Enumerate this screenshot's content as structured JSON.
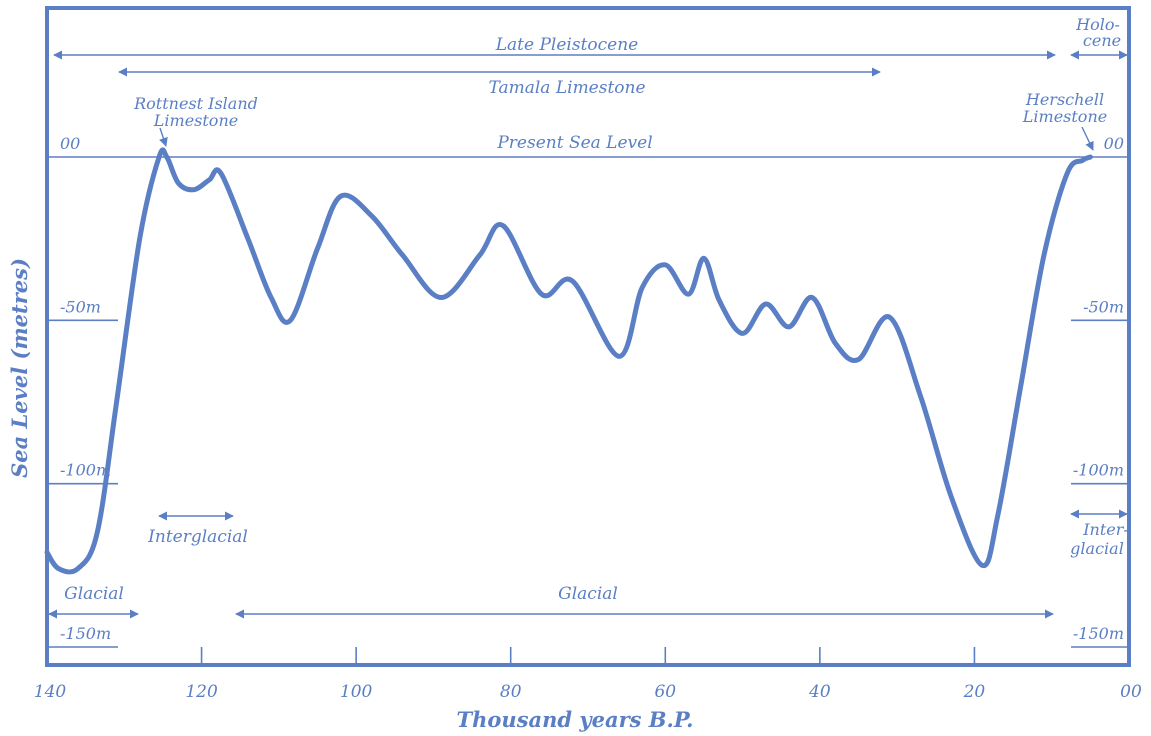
{
  "colors": {
    "accent": "#5b7fc4",
    "background": "#ffffff"
  },
  "chart_data": {
    "type": "line",
    "title": "",
    "xlabel": "Thousand years B.P.",
    "ylabel": "Sea Level (metres)",
    "xlim": [
      140,
      0
    ],
    "ylim": [
      -165,
      45
    ],
    "x_reversed": true,
    "x_ticks": [
      140,
      120,
      100,
      80,
      60,
      40,
      20,
      0
    ],
    "x_tick_labels": [
      "140",
      "120",
      "100",
      "80",
      "60",
      "40",
      "20",
      "00"
    ],
    "y_ticks": [
      0,
      -50,
      -100,
      -150
    ],
    "y_tick_labels_left": [
      "00",
      "-50m",
      "-100m",
      "-150m"
    ],
    "y_tick_labels_right": [
      "00",
      "-50m",
      "-100m",
      "-150m"
    ],
    "grid": false,
    "reference_line": {
      "y": 0,
      "label": "Present Sea Level"
    },
    "series": [
      {
        "x": [
          140,
          138.5,
          136,
          133.5,
          131,
          128,
          125.5,
          124.5,
          123,
          121,
          119,
          117.5,
          114,
          111,
          108.5,
          105,
          102,
          98,
          94,
          89,
          84,
          81,
          76,
          72,
          66,
          63,
          60,
          57,
          55,
          53,
          50,
          47,
          44,
          41,
          38,
          35,
          31,
          27,
          23,
          19,
          17,
          14,
          11,
          8,
          6,
          5
        ],
        "y": [
          -121,
          -126,
          -126,
          -115,
          -75,
          -25,
          0,
          0,
          -8,
          -10,
          -7,
          -5,
          -25,
          -43,
          -50,
          -28,
          -12,
          -18,
          -30,
          -43,
          -30,
          -21,
          -42,
          -38,
          -61,
          -40,
          -33,
          -42,
          -31,
          -44,
          -54,
          -45,
          -52,
          -43,
          -57,
          -62,
          -49,
          -73,
          -104,
          -125,
          -110,
          -70,
          -30,
          -5,
          -1,
          0
        ]
      }
    ],
    "annotations": [
      {
        "id": "rottnest",
        "text_lines": [
          "Rottnest Island",
          "Limestone"
        ],
        "x": 124.5,
        "y": 0
      },
      {
        "id": "herschell",
        "text_lines": [
          "Herschell",
          "Limestone"
        ],
        "x": 5,
        "y": 0
      },
      {
        "id": "late-pleistocene",
        "text": "Late Pleistocene",
        "x_range": [
          140,
          10
        ]
      },
      {
        "id": "holocene",
        "text_lines": [
          "Holo-",
          "cene"
        ],
        "x_range": [
          8,
          0
        ]
      },
      {
        "id": "tamala",
        "text": "Tamala Limestone",
        "x_range": [
          130,
          34
        ]
      },
      {
        "id": "interglacial-1",
        "text": "Interglacial",
        "x_range": [
          125,
          117
        ]
      },
      {
        "id": "interglacial-2",
        "text_lines": [
          "Inter-",
          "glacial"
        ],
        "x_range": [
          8,
          0
        ]
      },
      {
        "id": "glacial-1",
        "text": "Glacial",
        "x_range": [
          140,
          128
        ]
      },
      {
        "id": "glacial-2",
        "text": "Glacial",
        "x_range": [
          115,
          10
        ]
      }
    ]
  }
}
